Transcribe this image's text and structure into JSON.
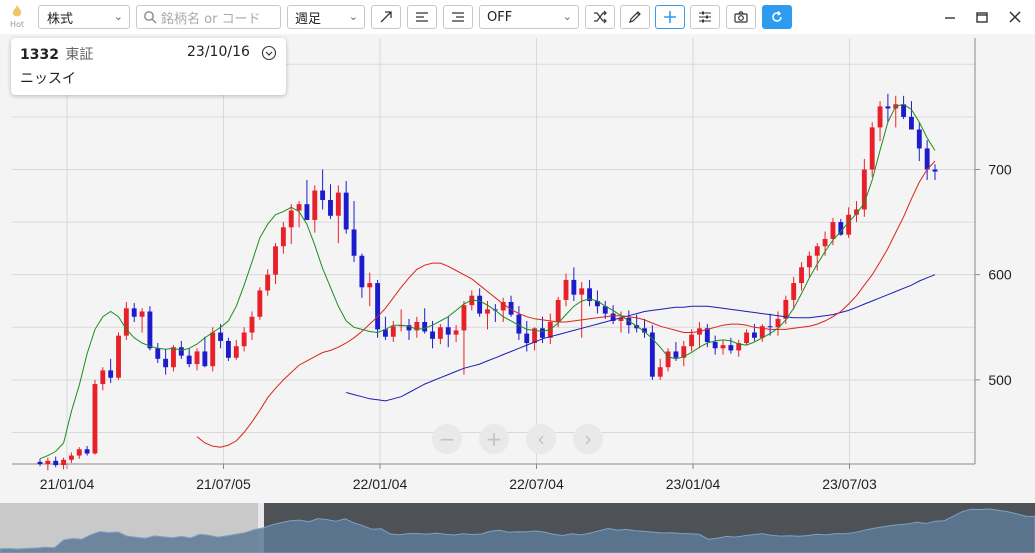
{
  "toolbar": {
    "hot_label": "Hot",
    "market_select": "株式",
    "search_placeholder": "銘柄名 or コード",
    "period_select": "週足",
    "indicator_select": "OFF"
  },
  "info_card": {
    "code": "1332",
    "exchange": "東証",
    "date": "23/10/16",
    "name": "ニッスイ"
  },
  "colors": {
    "up_candle": "#e8202a",
    "down_candle": "#1c1ccc",
    "ma_short": "#1e8c1e",
    "ma_mid": "#d8261c",
    "ma_long": "#1c1cb8",
    "accent": "#2f9bef"
  },
  "icons": [
    "trend-line-icon",
    "horizontal-line-icon",
    "horizontal-lines-icon",
    "random-icon",
    "pencil-icon",
    "crosshair-icon",
    "settings-sliders-icon",
    "camera-icon",
    "refresh-icon",
    "minimize-icon",
    "maximize-icon",
    "close-icon",
    "zoom-out-icon",
    "zoom-in-icon",
    "scroll-left-icon",
    "scroll-right-icon",
    "chevron-down-icon",
    "search-icon"
  ],
  "chart_data": {
    "type": "candlestick",
    "x_tick_labels": [
      "21/01/04",
      "21/07/05",
      "22/01/04",
      "22/07/04",
      "23/01/04",
      "23/07/03"
    ],
    "y_tick_labels": [
      "500",
      "600",
      "700"
    ],
    "ylim": [
      420,
      825
    ],
    "grid": true,
    "series_moving_averages": [
      "short",
      "medium",
      "long"
    ],
    "candles_ohlc": [
      [
        422,
        425,
        418,
        420
      ],
      [
        420,
        426,
        414,
        423
      ],
      [
        423,
        427,
        417,
        419
      ],
      [
        419,
        426,
        415,
        424
      ],
      [
        424,
        431,
        421,
        428
      ],
      [
        428,
        436,
        425,
        434
      ],
      [
        434,
        437,
        428,
        430
      ],
      [
        430,
        500,
        429,
        496
      ],
      [
        496,
        512,
        490,
        509
      ],
      [
        509,
        520,
        497,
        502
      ],
      [
        502,
        545,
        500,
        542
      ],
      [
        542,
        574,
        538,
        568
      ],
      [
        568,
        573,
        555,
        560
      ],
      [
        560,
        568,
        545,
        565
      ],
      [
        565,
        570,
        528,
        530
      ],
      [
        530,
        535,
        516,
        520
      ],
      [
        520,
        529,
        505,
        512
      ],
      [
        512,
        533,
        508,
        531
      ],
      [
        531,
        537,
        520,
        523
      ],
      [
        523,
        530,
        512,
        515
      ],
      [
        515,
        530,
        509,
        527
      ],
      [
        527,
        541,
        512,
        513
      ],
      [
        513,
        550,
        508,
        545
      ],
      [
        545,
        553,
        530,
        537
      ],
      [
        537,
        540,
        518,
        521
      ],
      [
        521,
        538,
        519,
        532
      ],
      [
        532,
        550,
        527,
        545
      ],
      [
        545,
        565,
        538,
        560
      ],
      [
        560,
        588,
        557,
        585
      ],
      [
        585,
        605,
        580,
        600
      ],
      [
        600,
        630,
        591,
        627
      ],
      [
        627,
        650,
        620,
        645
      ],
      [
        645,
        667,
        629,
        661
      ],
      [
        661,
        670,
        645,
        667
      ],
      [
        667,
        690,
        654,
        652
      ],
      [
        652,
        685,
        640,
        680
      ],
      [
        680,
        700,
        662,
        671
      ],
      [
        671,
        686,
        653,
        656
      ],
      [
        656,
        685,
        630,
        678
      ],
      [
        678,
        689,
        639,
        643
      ],
      [
        643,
        670,
        612,
        618
      ],
      [
        618,
        620,
        578,
        588
      ],
      [
        588,
        602,
        570,
        592
      ],
      [
        592,
        595,
        540,
        548
      ],
      [
        548,
        560,
        538,
        541
      ],
      [
        541,
        556,
        536,
        551
      ],
      [
        551,
        567,
        546,
        552
      ],
      [
        552,
        558,
        538,
        547
      ],
      [
        547,
        560,
        540,
        555
      ],
      [
        555,
        568,
        544,
        546
      ],
      [
        546,
        556,
        530,
        539
      ],
      [
        539,
        553,
        534,
        550
      ],
      [
        550,
        560,
        531,
        543
      ],
      [
        543,
        552,
        536,
        547
      ],
      [
        547,
        575,
        505,
        571
      ],
      [
        571,
        585,
        566,
        580
      ],
      [
        580,
        587,
        560,
        563
      ],
      [
        563,
        575,
        548,
        567
      ],
      [
        567,
        572,
        555,
        566
      ],
      [
        566,
        578,
        555,
        574
      ],
      [
        574,
        580,
        560,
        562
      ],
      [
        562,
        570,
        538,
        544
      ],
      [
        544,
        556,
        527,
        535
      ],
      [
        535,
        550,
        528,
        549
      ],
      [
        549,
        560,
        535,
        540
      ],
      [
        540,
        563,
        534,
        555
      ],
      [
        555,
        579,
        550,
        576
      ],
      [
        576,
        601,
        570,
        595
      ],
      [
        595,
        607,
        575,
        581
      ],
      [
        581,
        593,
        540,
        587
      ],
      [
        587,
        595,
        570,
        575
      ],
      [
        575,
        585,
        563,
        570
      ],
      [
        570,
        575,
        558,
        563
      ],
      [
        563,
        571,
        553,
        556
      ],
      [
        556,
        565,
        545,
        559
      ],
      [
        559,
        566,
        544,
        552
      ],
      [
        552,
        562,
        545,
        549
      ],
      [
        549,
        558,
        540,
        545
      ],
      [
        545,
        552,
        500,
        503
      ],
      [
        503,
        520,
        500,
        512
      ],
      [
        512,
        530,
        508,
        527
      ],
      [
        527,
        536,
        518,
        521
      ],
      [
        521,
        537,
        513,
        532
      ],
      [
        532,
        548,
        527,
        543
      ],
      [
        543,
        555,
        530,
        549
      ],
      [
        549,
        553,
        531,
        536
      ],
      [
        536,
        542,
        524,
        530
      ],
      [
        530,
        538,
        524,
        533
      ],
      [
        533,
        540,
        525,
        528
      ],
      [
        528,
        538,
        522,
        535
      ],
      [
        535,
        548,
        533,
        545
      ],
      [
        545,
        553,
        537,
        540
      ],
      [
        540,
        553,
        536,
        551
      ],
      [
        551,
        563,
        542,
        550
      ],
      [
        550,
        565,
        542,
        558
      ],
      [
        558,
        580,
        553,
        576
      ],
      [
        576,
        598,
        567,
        592
      ],
      [
        592,
        612,
        585,
        607
      ],
      [
        607,
        622,
        597,
        618
      ],
      [
        618,
        630,
        604,
        627
      ],
      [
        627,
        641,
        618,
        634
      ],
      [
        634,
        654,
        628,
        650
      ],
      [
        650,
        653,
        637,
        638
      ],
      [
        638,
        664,
        635,
        657
      ],
      [
        657,
        670,
        650,
        662
      ],
      [
        662,
        710,
        655,
        700
      ],
      [
        700,
        745,
        693,
        740
      ],
      [
        740,
        765,
        727,
        760
      ],
      [
        760,
        772,
        745,
        758
      ],
      [
        758,
        770,
        740,
        762
      ],
      [
        762,
        770,
        748,
        750
      ],
      [
        750,
        765,
        738,
        738
      ],
      [
        738,
        745,
        708,
        720
      ],
      [
        720,
        728,
        690,
        700
      ],
      [
        700,
        705,
        690,
        698
      ]
    ],
    "ma_short_values": [
      425,
      428,
      432,
      440,
      470,
      495,
      525,
      548,
      560,
      565,
      560,
      548,
      540,
      535,
      532,
      530,
      529,
      530,
      528,
      530,
      534,
      540,
      545,
      550,
      556,
      570,
      590,
      612,
      635,
      648,
      657,
      660,
      664,
      660,
      648,
      628,
      606,
      588,
      570,
      556,
      550,
      548,
      546,
      545,
      548,
      552,
      552,
      551,
      548,
      549,
      552,
      556,
      560,
      566,
      572,
      576,
      575,
      571,
      566,
      560,
      556,
      552,
      548,
      547,
      546,
      548,
      554,
      562,
      570,
      575,
      577,
      575,
      570,
      566,
      561,
      556,
      551,
      546,
      539,
      531,
      522,
      520,
      522,
      526,
      531,
      535,
      537,
      538,
      537,
      534,
      533,
      536,
      540,
      544,
      549,
      557,
      568,
      582,
      597,
      610,
      622,
      633,
      641,
      650,
      658,
      668,
      690,
      718,
      745,
      760,
      762,
      757,
      745,
      730,
      718
    ],
    "ma_mid_values": [
      446,
      440,
      437,
      436,
      438,
      442,
      450,
      460,
      471,
      483,
      492,
      500,
      507,
      514,
      518,
      522,
      526,
      528,
      531,
      535,
      540,
      546,
      553,
      560,
      568,
      578,
      588,
      597,
      605,
      609,
      611,
      611,
      608,
      604,
      600,
      596,
      590,
      584,
      578,
      572,
      567,
      563,
      560,
      558,
      557,
      556,
      555,
      555,
      556,
      557,
      558,
      559,
      560,
      561,
      561,
      560,
      559,
      557,
      554,
      551,
      549,
      547,
      545,
      545,
      546,
      548,
      550,
      552,
      553,
      553,
      552,
      550,
      549,
      548,
      548,
      548,
      549,
      550,
      551,
      553,
      556,
      560,
      565,
      572,
      580,
      590,
      600,
      612,
      625,
      640,
      655,
      672,
      688,
      700,
      708
    ],
    "ma_long_values": [
      488,
      486,
      484,
      482,
      481,
      480,
      482,
      484,
      488,
      492,
      496,
      499,
      502,
      505,
      508,
      511,
      513,
      515,
      518,
      521,
      524,
      527,
      530,
      533,
      536,
      539,
      541,
      543,
      545,
      547,
      549,
      551,
      553,
      555,
      557,
      559,
      561,
      563,
      565,
      566,
      567,
      568,
      569,
      569,
      570,
      570,
      570,
      569,
      568,
      567,
      566,
      565,
      564,
      563,
      562,
      561,
      560,
      559,
      559,
      559,
      560,
      561,
      562,
      564,
      566,
      569,
      572,
      575,
      578,
      581,
      584,
      587,
      590,
      594,
      597,
      600
    ]
  }
}
